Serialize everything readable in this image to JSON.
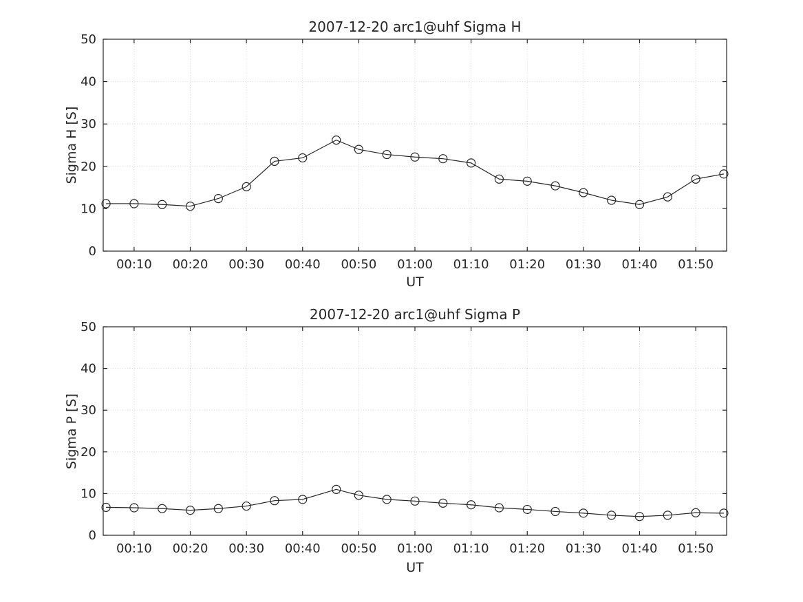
{
  "chart_data": [
    {
      "type": "line",
      "title": "2007-12-20  arc1@uhf Sigma H",
      "xlabel": "UT",
      "ylabel": "Sigma H [S]",
      "ylim": [
        0,
        50
      ],
      "yticks": [
        0,
        10,
        20,
        30,
        40,
        50
      ],
      "xlim_minutes": [
        4.5,
        115.5
      ],
      "xtick_minutes": [
        10,
        20,
        30,
        40,
        50,
        60,
        70,
        80,
        90,
        100,
        110
      ],
      "xtick_labels": [
        "00:10",
        "00:20",
        "00:30",
        "00:40",
        "00:50",
        "01:00",
        "01:10",
        "01:20",
        "01:30",
        "01:40",
        "01:50"
      ],
      "x_times": [
        "00:05",
        "00:10",
        "00:15",
        "00:20",
        "00:25",
        "00:30",
        "00:35",
        "00:40",
        "00:46",
        "00:50",
        "00:55",
        "01:00",
        "01:05",
        "01:10",
        "01:15",
        "01:20",
        "01:25",
        "01:30",
        "01:35",
        "01:40",
        "01:45",
        "01:50",
        "01:55"
      ],
      "x_minutes": [
        5,
        10,
        15,
        20,
        25,
        30,
        35,
        40,
        46,
        50,
        55,
        60,
        65,
        70,
        75,
        80,
        85,
        90,
        95,
        100,
        105,
        110,
        115
      ],
      "values": [
        11.2,
        11.2,
        11.0,
        10.6,
        12.4,
        15.2,
        21.2,
        22.0,
        26.2,
        24.0,
        22.8,
        22.2,
        21.8,
        20.8,
        17.0,
        16.5,
        15.4,
        13.8,
        12.0,
        11.0,
        12.8,
        17.0,
        18.2
      ],
      "grid": true,
      "marker": "circle",
      "line_color": "#262626"
    },
    {
      "type": "line",
      "title": "2007-12-20  arc1@uhf Sigma P",
      "xlabel": "UT",
      "ylabel": "Sigma P [S]",
      "ylim": [
        0,
        50
      ],
      "yticks": [
        0,
        10,
        20,
        30,
        40,
        50
      ],
      "xlim_minutes": [
        4.5,
        115.5
      ],
      "xtick_minutes": [
        10,
        20,
        30,
        40,
        50,
        60,
        70,
        80,
        90,
        100,
        110
      ],
      "xtick_labels": [
        "00:10",
        "00:20",
        "00:30",
        "00:40",
        "00:50",
        "01:00",
        "01:10",
        "01:20",
        "01:30",
        "01:40",
        "01:50"
      ],
      "x_times": [
        "00:05",
        "00:10",
        "00:15",
        "00:20",
        "00:25",
        "00:30",
        "00:35",
        "00:40",
        "00:46",
        "00:50",
        "00:55",
        "01:00",
        "01:05",
        "01:10",
        "01:15",
        "01:20",
        "01:25",
        "01:30",
        "01:35",
        "01:40",
        "01:45",
        "01:50",
        "01:55"
      ],
      "x_minutes": [
        5,
        10,
        15,
        20,
        25,
        30,
        35,
        40,
        46,
        50,
        55,
        60,
        65,
        70,
        75,
        80,
        85,
        90,
        95,
        100,
        105,
        110,
        115
      ],
      "values": [
        6.7,
        6.6,
        6.4,
        6.0,
        6.4,
        7.0,
        8.3,
        8.6,
        11.0,
        9.6,
        8.6,
        8.2,
        7.7,
        7.3,
        6.6,
        6.2,
        5.7,
        5.3,
        4.8,
        4.5,
        4.8,
        5.4,
        5.3
      ],
      "grid": true,
      "marker": "circle",
      "line_color": "#262626"
    }
  ]
}
